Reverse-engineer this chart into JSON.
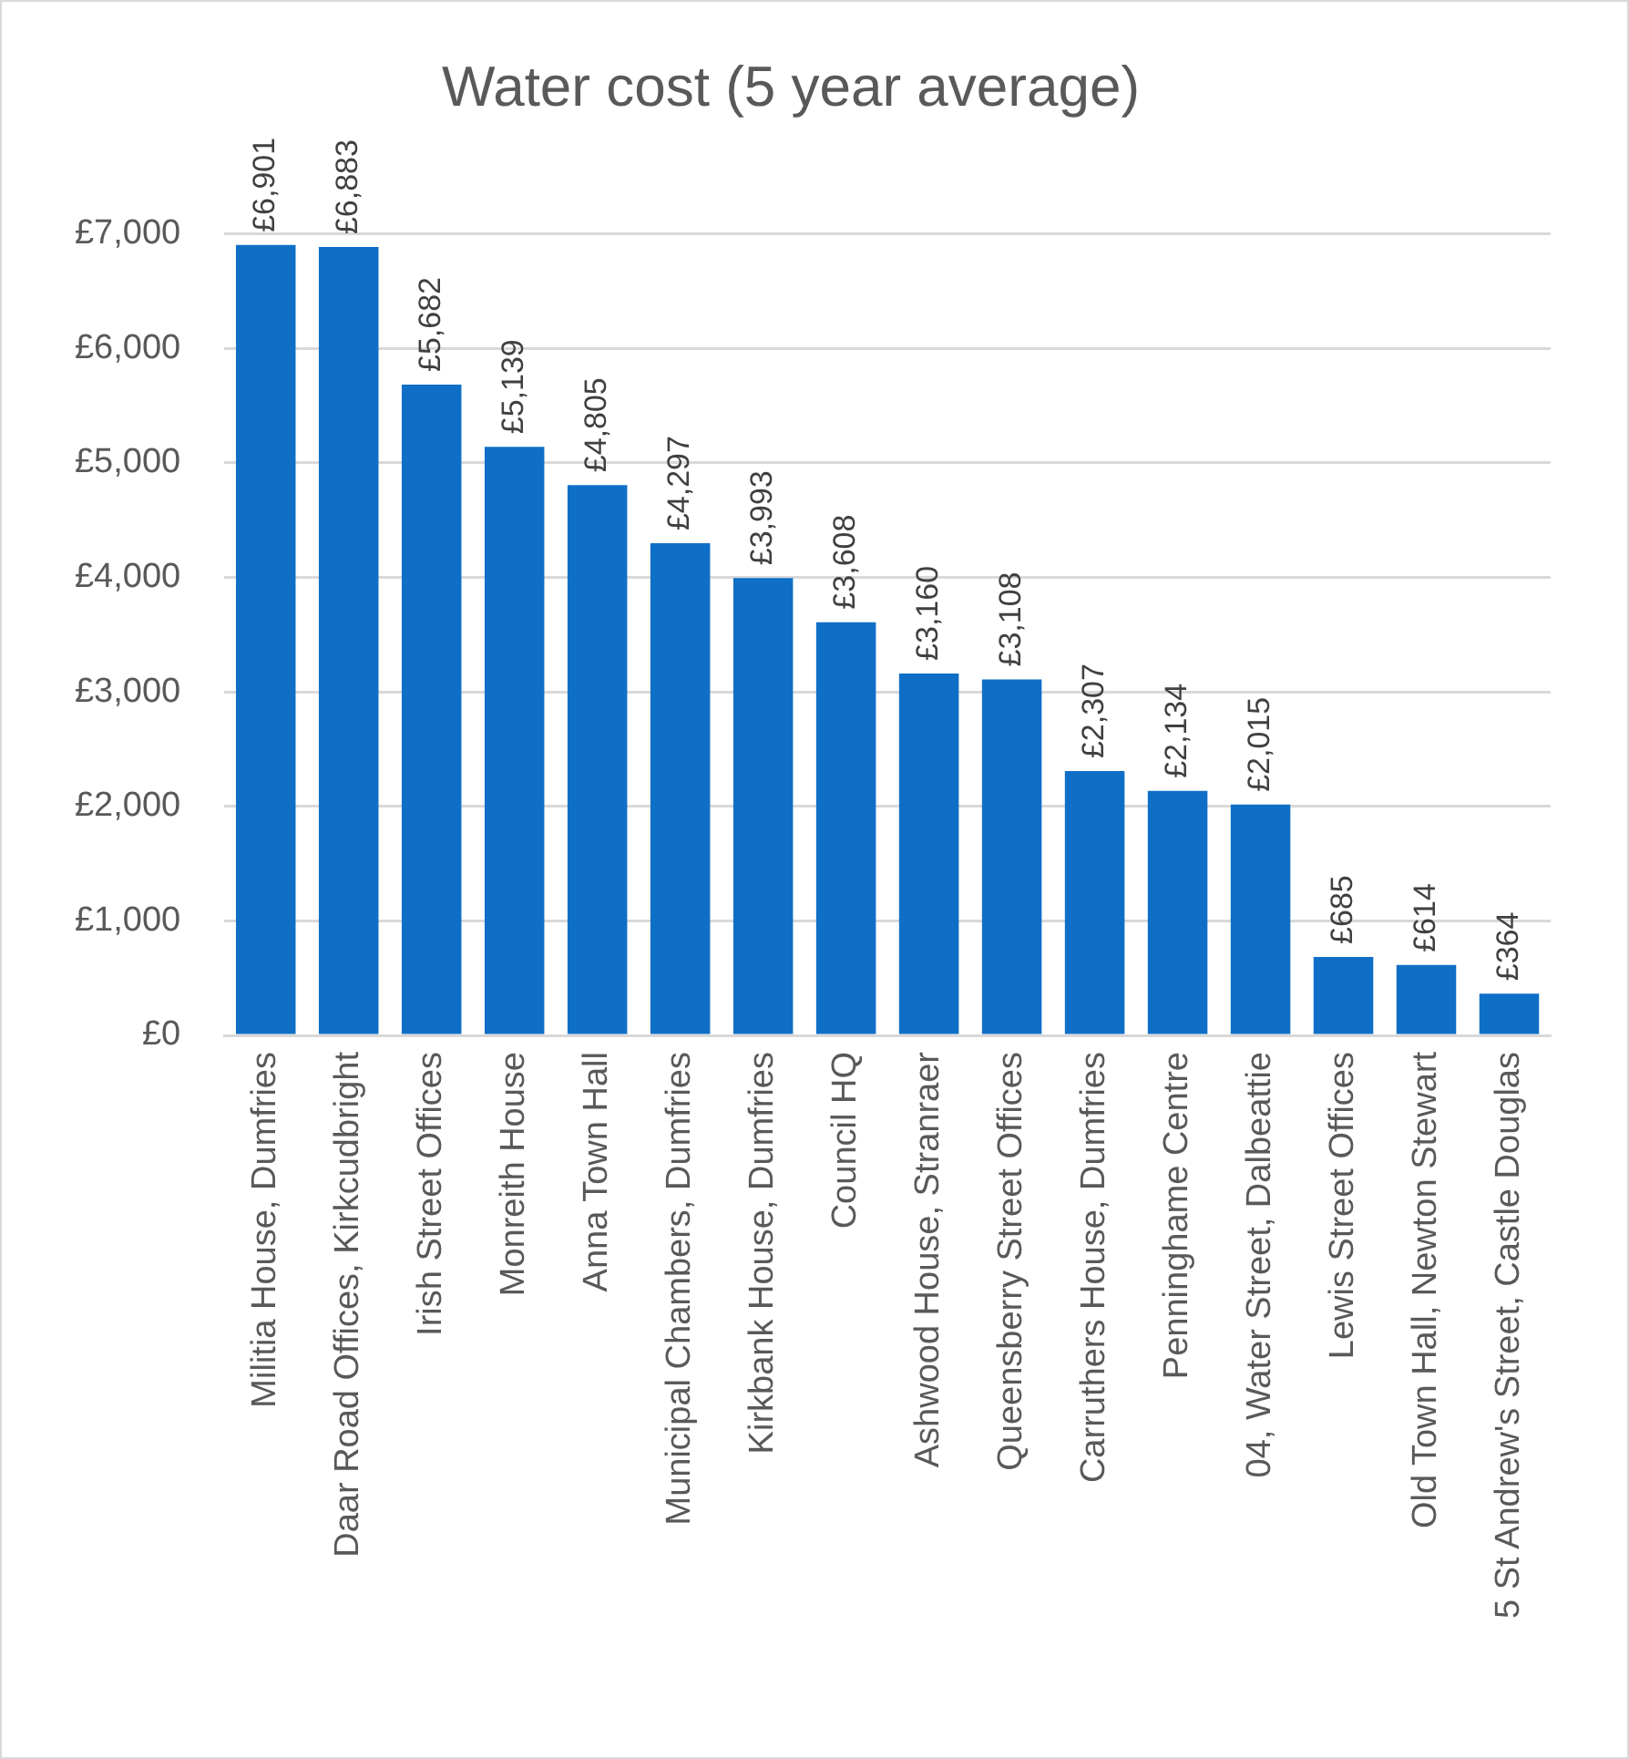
{
  "chart_data": {
    "type": "bar",
    "title": "Water cost (5 year average)",
    "categories": [
      "Militia House, Dumfries",
      "Daar Road Offices, Kirkcudbright",
      "Irish Street Offices",
      "Monreith House",
      "Anna Town Hall",
      "Municipal Chambers, Dumfries",
      "Kirkbank House, Dumfries",
      "Council HQ",
      "Ashwood House, Stranraer",
      "Queensberry Street Offices",
      "Carruthers House, Dumfries",
      "Penninghame Centre",
      "04, Water Street, Dalbeattie",
      "Lewis Street Offices",
      "Old Town Hall, Newton Stewart",
      "5 St Andrew's Street, Castle Douglas"
    ],
    "values": [
      6901,
      6883,
      5682,
      5139,
      4805,
      4297,
      3993,
      3608,
      3160,
      3108,
      2307,
      2134,
      2015,
      685,
      614,
      364
    ],
    "value_labels": [
      "£6,901",
      "£6,883",
      "£5,682",
      "£5,139",
      "£4,805",
      "£4,297",
      "£3,993",
      "£3,608",
      "£3,160",
      "£3,108",
      "£2,307",
      "£2,134",
      "£2,015",
      "£685",
      "£614",
      "£364"
    ],
    "color": "#0f6fc6",
    "ylim": [
      0,
      7000
    ],
    "yticks": [
      {
        "value": 0,
        "label": "£0"
      },
      {
        "value": 1000,
        "label": "£1,000"
      },
      {
        "value": 2000,
        "label": "£2,000"
      },
      {
        "value": 3000,
        "label": "£3,000"
      },
      {
        "value": 4000,
        "label": "£4,000"
      },
      {
        "value": 5000,
        "label": "£5,000"
      },
      {
        "value": 6000,
        "label": "£6,000"
      },
      {
        "value": 7000,
        "label": "£7,000"
      }
    ],
    "grid": "y"
  }
}
